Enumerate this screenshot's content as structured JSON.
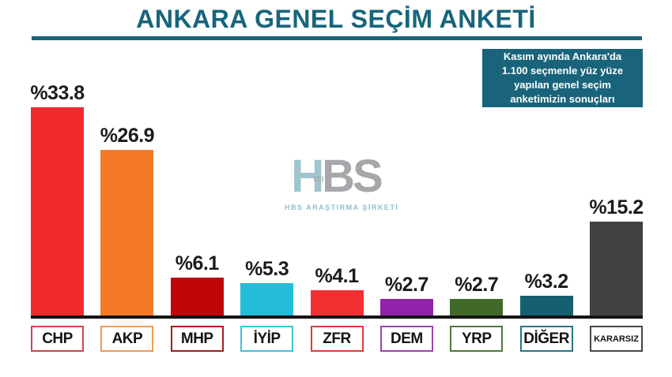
{
  "title": "ANKARA GENEL SEÇİM ANKETİ",
  "info_box": {
    "lines": [
      "Kasım ayında Ankara'da",
      "1.100 seçmenle yüz yüze",
      "yapılan genel seçim",
      "anketimizin sonuçları"
    ]
  },
  "watermark": {
    "logo_h": "H",
    "logo_bs": "BS",
    "subtitle": "HBS ARAŞTIRMA ŞİRKETİ"
  },
  "colors": {
    "accent_teal": "#17657B",
    "info_box_bg": "#19647A",
    "axis": "#141414",
    "value_label": "#1b1b1b",
    "watermark_h": "#9EC5CD",
    "watermark_bs": "#A5A7AA",
    "watermark_sub": "#8FC0CB"
  },
  "chart_data": {
    "type": "bar",
    "title": "ANKARA GENEL SEÇİM ANKETİ",
    "xlabel": "",
    "ylabel": "",
    "ylim": [
      0,
      35
    ],
    "grid": false,
    "legend": false,
    "categories": [
      "CHP",
      "AKP",
      "MHP",
      "İYİP",
      "ZFR",
      "DEM",
      "YRP",
      "DİĞER",
      "KARARSIZ"
    ],
    "values": [
      33.8,
      26.9,
      6.1,
      5.3,
      4.1,
      2.7,
      2.7,
      3.2,
      15.2
    ],
    "value_labels": [
      "%33.8",
      "%26.9",
      "%6.1",
      "%5.3",
      "%4.1",
      "%2.7",
      "%2.7",
      "%3.2",
      "%15.2"
    ],
    "bar_colors": [
      "#F22A2E",
      "#F57A28",
      "#C00509",
      "#24BCD9",
      "#F42F31",
      "#9322AB",
      "#40692A",
      "#155F70",
      "#414144"
    ],
    "box_border_colors": [
      "#CC4750",
      "#EE9B55",
      "#A31C20",
      "#3FC2DA",
      "#E23B3E",
      "#9C42B5",
      "#517A39",
      "#277582",
      "#47474A"
    ]
  }
}
